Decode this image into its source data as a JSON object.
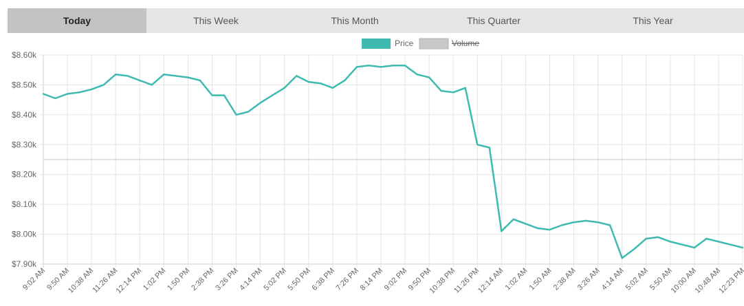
{
  "tabs": [
    {
      "label": "Today",
      "active": true
    },
    {
      "label": "This Week",
      "active": false
    },
    {
      "label": "This Month",
      "active": false
    },
    {
      "label": "This Quarter",
      "active": false
    },
    {
      "label": "This Year",
      "active": false
    }
  ],
  "colors": {
    "price": "#3fbab0",
    "volume": "#c8c8c8",
    "grid": "#e4e4e4",
    "crosshair": "#c4c4c4"
  },
  "chart_data": {
    "type": "line",
    "title": "",
    "xlabel": "",
    "ylabel": "",
    "ylim": [
      7900,
      8600
    ],
    "grid": true,
    "legend_position": "top-center",
    "legend": [
      {
        "label": "Price",
        "hidden": false
      },
      {
        "label": "Volume",
        "hidden": true
      }
    ],
    "y_ticks": [
      {
        "value": 8600,
        "label": "$8.60k"
      },
      {
        "value": 8500,
        "label": "$8.50k"
      },
      {
        "value": 8400,
        "label": "$8.40k"
      },
      {
        "value": 8300,
        "label": "$8.30k"
      },
      {
        "value": 8200,
        "label": "$8.20k"
      },
      {
        "value": 8100,
        "label": "$8.10k"
      },
      {
        "value": 8000,
        "label": "$8.00k"
      },
      {
        "value": 7900,
        "label": "$7.90k"
      }
    ],
    "x_ticks": [
      "9:02 AM",
      "9:50 AM",
      "10:38 AM",
      "11:26 AM",
      "12:14 PM",
      "1:02 PM",
      "1:50 PM",
      "2:38 PM",
      "3:26 PM",
      "4:14 PM",
      "5:02 PM",
      "5:50 PM",
      "6:38 PM",
      "7:26 PM",
      "8:14 PM",
      "9:02 PM",
      "9:50 PM",
      "10:38 PM",
      "11:26 PM",
      "12:14 AM",
      "1:02 AM",
      "1:50 AM",
      "2:38 AM",
      "3:26 AM",
      "4:14 AM",
      "5:02 AM",
      "5:50 AM",
      "10:00 AM",
      "10:48 AM",
      "12:23 PM"
    ],
    "crosshair_value": 8250,
    "series": [
      {
        "name": "Price",
        "x": [
          "9:02 AM",
          "9:26 AM",
          "9:50 AM",
          "10:14 AM",
          "10:38 AM",
          "11:02 AM",
          "11:26 AM",
          "11:50 AM",
          "12:14 PM",
          "12:38 PM",
          "1:02 PM",
          "1:26 PM",
          "1:50 PM",
          "2:14 PM",
          "2:38 PM",
          "3:02 PM",
          "3:26 PM",
          "3:50 PM",
          "4:14 PM",
          "4:38 PM",
          "5:02 PM",
          "5:26 PM",
          "5:50 PM",
          "6:14 PM",
          "6:38 PM",
          "7:02 PM",
          "7:26 PM",
          "7:50 PM",
          "8:14 PM",
          "8:38 PM",
          "9:02 PM",
          "9:26 PM",
          "9:50 PM",
          "10:14 PM",
          "10:38 PM",
          "11:02 PM",
          "11:26 PM",
          "11:50 PM",
          "12:14 AM",
          "12:38 AM",
          "1:02 AM",
          "1:26 AM",
          "1:50 AM",
          "2:14 AM",
          "2:38 AM",
          "3:02 AM",
          "3:26 AM",
          "3:50 AM",
          "4:14 AM",
          "4:38 AM",
          "5:02 AM",
          "5:26 AM",
          "5:50 AM",
          "10:00 AM",
          "10:24 AM",
          "10:48 AM",
          "11:36 AM",
          "12:23 PM"
        ],
        "values": [
          8470,
          8455,
          8470,
          8475,
          8485,
          8500,
          8535,
          8530,
          8515,
          8500,
          8535,
          8530,
          8525,
          8515,
          8465,
          8465,
          8400,
          8410,
          8440,
          8465,
          8490,
          8530,
          8510,
          8505,
          8490,
          8515,
          8560,
          8565,
          8560,
          8565,
          8565,
          8535,
          8525,
          8480,
          8475,
          8490,
          8300,
          8290,
          8010,
          8050,
          8035,
          8020,
          8015,
          8030,
          8040,
          8045,
          8040,
          8030,
          7920,
          7950,
          7985,
          7990,
          7975,
          7955,
          7985,
          7975,
          7965,
          7955
        ]
      }
    ]
  }
}
